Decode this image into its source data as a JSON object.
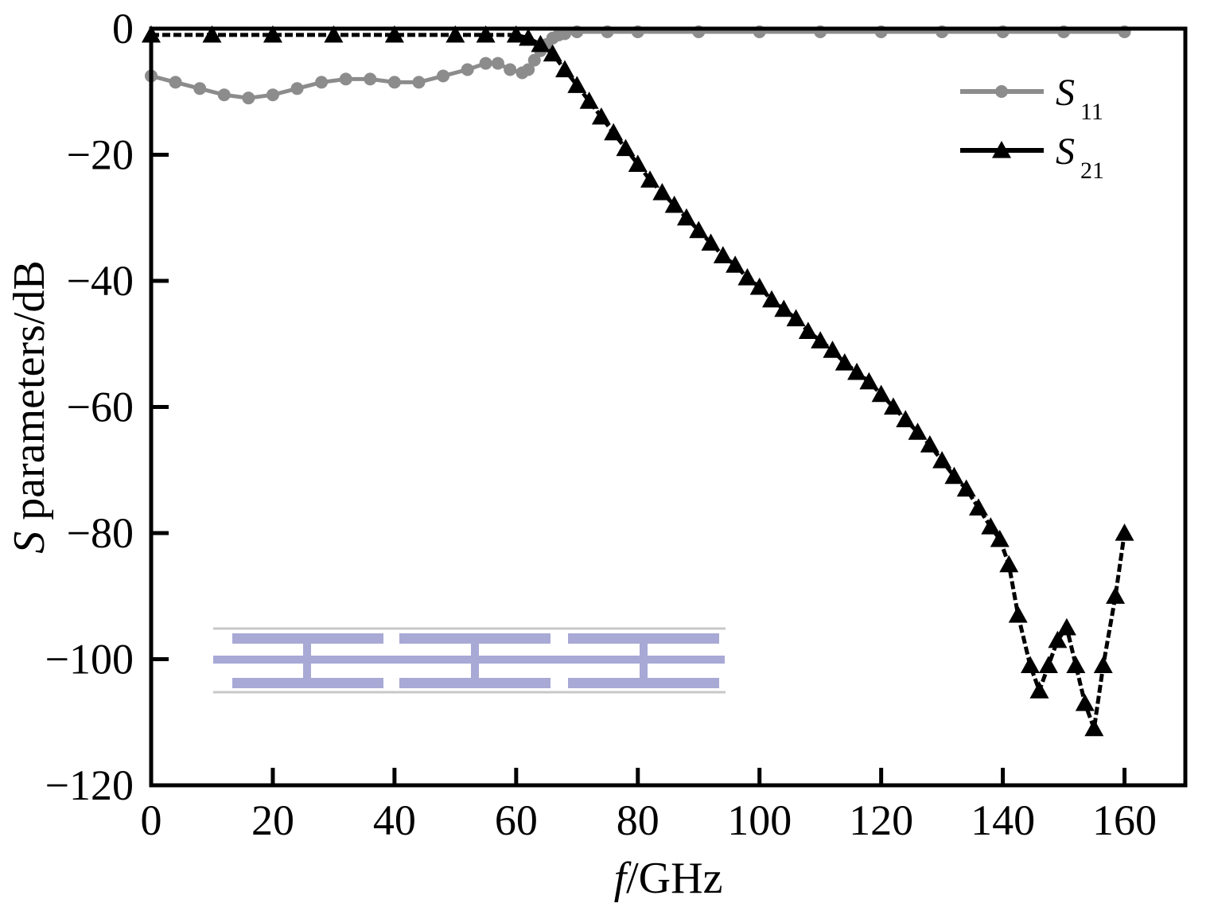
{
  "chart_data": {
    "type": "line",
    "xlabel": {
      "italic": "f",
      "rest": "/GHz"
    },
    "ylabel": {
      "italic": "S",
      "rest": " parameters/dB"
    },
    "xlim": [
      0,
      170
    ],
    "ylim": [
      -120,
      0
    ],
    "x_ticks": [
      0,
      20,
      40,
      60,
      80,
      100,
      120,
      140,
      160
    ],
    "x_tick_labels": [
      "0",
      "20",
      "40",
      "60",
      "80",
      "100",
      "120",
      "140",
      "160"
    ],
    "y_ticks": [
      0,
      -20,
      -40,
      -60,
      -80,
      -100,
      -120
    ],
    "y_tick_labels": [
      "0",
      "−20",
      "−40",
      "−60",
      "−80",
      "−100",
      "−120"
    ],
    "grid": false,
    "legend_position": "top-right",
    "series": [
      {
        "name": "S11",
        "name_main": "S",
        "name_sub": "11",
        "color": "#8c8c8c",
        "marker": "circle",
        "x": [
          0,
          4,
          8,
          12,
          16,
          20,
          24,
          28,
          32,
          36,
          40,
          44,
          48,
          52,
          55,
          57,
          59,
          61,
          62,
          63,
          64,
          65,
          66,
          67,
          68,
          70,
          75,
          80,
          90,
          100,
          110,
          120,
          130,
          140,
          150,
          160
        ],
        "y": [
          -7.5,
          -8.5,
          -9.5,
          -10.5,
          -11,
          -10.5,
          -9.5,
          -8.5,
          -8,
          -8,
          -8.5,
          -8.5,
          -7.5,
          -6.5,
          -5.5,
          -5.5,
          -6.5,
          -7,
          -6.5,
          -5,
          -3.5,
          -2.5,
          -1.5,
          -1,
          -0.8,
          -0.5,
          -0.5,
          -0.5,
          -0.5,
          -0.5,
          -0.5,
          -0.5,
          -0.5,
          -0.5,
          -0.5,
          -0.5
        ]
      },
      {
        "name": "S21",
        "name_main": "S",
        "name_sub": "21",
        "color": "#000000",
        "marker": "triangle",
        "x": [
          0,
          10,
          20,
          30,
          40,
          50,
          55,
          60,
          62,
          64,
          66,
          68,
          70,
          72,
          74,
          76,
          78,
          80,
          82,
          84,
          86,
          88,
          90,
          92,
          94,
          96,
          98,
          100,
          102,
          104,
          106,
          108,
          110,
          112,
          114,
          116,
          118,
          120,
          122,
          124,
          126,
          128,
          130,
          132,
          134,
          136,
          138,
          139.5,
          141,
          142.5,
          144.5,
          146,
          147.5,
          149,
          150.5,
          152,
          153.5,
          155,
          156.5,
          158.5,
          160
        ],
        "y": [
          -1,
          -1,
          -1,
          -1,
          -1,
          -1,
          -1,
          -1,
          -1.5,
          -2.5,
          -4,
          -6.5,
          -9,
          -11.5,
          -14,
          -16.5,
          -19,
          -21.5,
          -24,
          -26,
          -28,
          -30,
          -32,
          -34,
          -36,
          -37.5,
          -39.5,
          -41,
          -43,
          -44.5,
          -46,
          -48,
          -49.5,
          -51,
          -53,
          -54.5,
          -56,
          -58,
          -60,
          -62,
          -64,
          -66,
          -68.5,
          -71,
          -73,
          -76,
          -79,
          -81,
          -85,
          -93,
          -101,
          -105,
          -101,
          -97,
          -95,
          -101,
          -107,
          -111,
          -101,
          -90,
          -80
        ]
      }
    ],
    "legend": [
      {
        "main": "S",
        "sub": "11",
        "series": "S11"
      },
      {
        "main": "S",
        "sub": "21",
        "series": "S21"
      }
    ]
  }
}
